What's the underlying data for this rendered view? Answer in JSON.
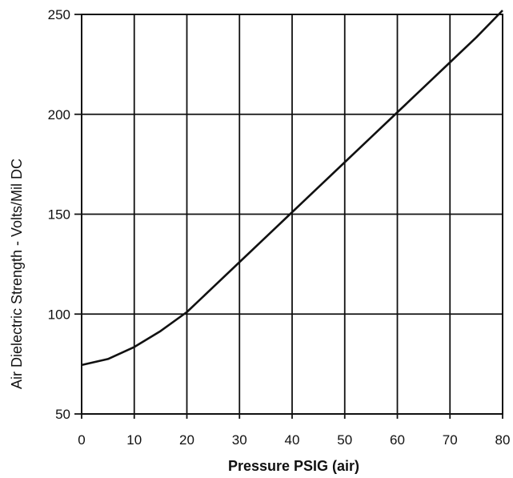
{
  "chart_data": {
    "type": "line",
    "title": "",
    "xlabel": "Pressure PSIG (air)",
    "ylabel": "Air Dielectric Strength - Volts/Mil DC",
    "xlim": [
      0,
      80
    ],
    "ylim": [
      50,
      250
    ],
    "x_ticks": [
      0,
      10,
      20,
      30,
      40,
      50,
      60,
      70,
      80
    ],
    "y_ticks": [
      50,
      100,
      150,
      200,
      250
    ],
    "x_tick_labels": [
      "0",
      "10",
      "20",
      "30",
      "40",
      "50",
      "60",
      "70",
      "80"
    ],
    "y_tick_labels": [
      "50",
      "100",
      "150",
      "200",
      "250"
    ],
    "grid": true,
    "legend": "none",
    "series": [
      {
        "x": [
          0,
          5,
          10,
          15,
          20,
          25,
          30,
          35,
          40,
          45,
          50,
          55,
          60,
          65,
          70,
          75,
          80
        ],
        "y": [
          74.5,
          77.5,
          83.5,
          91.5,
          101,
          113.5,
          126,
          138.5,
          151,
          163.5,
          176,
          188.5,
          201,
          213.5,
          226,
          238.5,
          252
        ]
      }
    ],
    "colors": {
      "line": "#111111",
      "grid": "#111111"
    }
  }
}
